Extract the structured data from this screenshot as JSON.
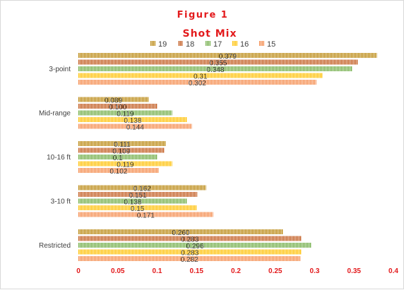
{
  "chart_data": {
    "type": "bar",
    "orientation": "horizontal",
    "title": "Figure 1",
    "subtitle": "Shot Mix",
    "categories": [
      "3-point",
      "Mid-range",
      "10-16 ft",
      "3-10 ft",
      "Restricted"
    ],
    "series": [
      {
        "name": "19",
        "color": "#b8860b",
        "values": [
          0.379,
          0.089,
          0.111,
          0.162,
          0.26
        ],
        "labels": [
          "0.379",
          "0.089",
          "0.111",
          "0.162",
          "0.260"
        ]
      },
      {
        "name": "18",
        "color": "#c0571a",
        "values": [
          0.355,
          0.1,
          0.109,
          0.151,
          0.283
        ],
        "labels": [
          "0.355",
          "0.100",
          "0.109",
          "0.151",
          "0.283"
        ]
      },
      {
        "name": "17",
        "color": "#70ad47",
        "values": [
          0.348,
          0.119,
          0.1,
          0.138,
          0.296
        ],
        "labels": [
          "0.348",
          "0.119",
          "0.1",
          "0.138",
          "0.296"
        ]
      },
      {
        "name": "16",
        "color": "#ffc000",
        "values": [
          0.31,
          0.138,
          0.119,
          0.15,
          0.283
        ],
        "labels": [
          "0.31",
          "0.138",
          "0.119",
          "0.15",
          "0.283"
        ]
      },
      {
        "name": "15",
        "color": "#f4894a",
        "values": [
          0.302,
          0.144,
          0.102,
          0.171,
          0.282
        ],
        "labels": [
          "0.302",
          "0.144",
          "0.102",
          "0.171",
          "0.282"
        ]
      }
    ],
    "xlim": [
      0,
      0.4
    ],
    "xticks": [
      "0",
      "0.05",
      "0.1",
      "0.15",
      "0.2",
      "0.25",
      "0.3",
      "0.35",
      "0.4"
    ],
    "xlabel": "",
    "ylabel": "",
    "grid": false,
    "legend_position": "top"
  }
}
